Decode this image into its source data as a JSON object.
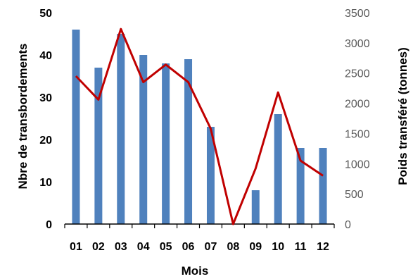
{
  "chart_data": {
    "type": "bar+line",
    "categories": [
      "01",
      "02",
      "03",
      "04",
      "05",
      "06",
      "07",
      "08",
      "09",
      "10",
      "11",
      "12"
    ],
    "series": [
      {
        "name": "",
        "type": "bar",
        "axis": "left",
        "color": "#4F81BD",
        "values": [
          46,
          37,
          45,
          40,
          38,
          39,
          23,
          0,
          8,
          26,
          18,
          18
        ]
      },
      {
        "name": "",
        "type": "line",
        "axis": "right",
        "color": "#C00000",
        "values": [
          2450,
          2060,
          3230,
          2350,
          2640,
          2350,
          1580,
          0,
          920,
          2180,
          1050,
          800
        ]
      }
    ],
    "xlabel": "Mois",
    "ylabel_left": "Nbre de transbordements",
    "ylabel_right": "Poids transféré (tonnes)",
    "ylim_left": [
      0,
      50
    ],
    "ylim_right": [
      0,
      3500
    ],
    "yticks_left": [
      "0",
      "10",
      "20",
      "30",
      "40",
      "50"
    ],
    "yticks_right": [
      "0",
      "500",
      "1000",
      "1500",
      "2000",
      "2500",
      "3000",
      "3500"
    ],
    "grid": false,
    "legend": "none"
  }
}
